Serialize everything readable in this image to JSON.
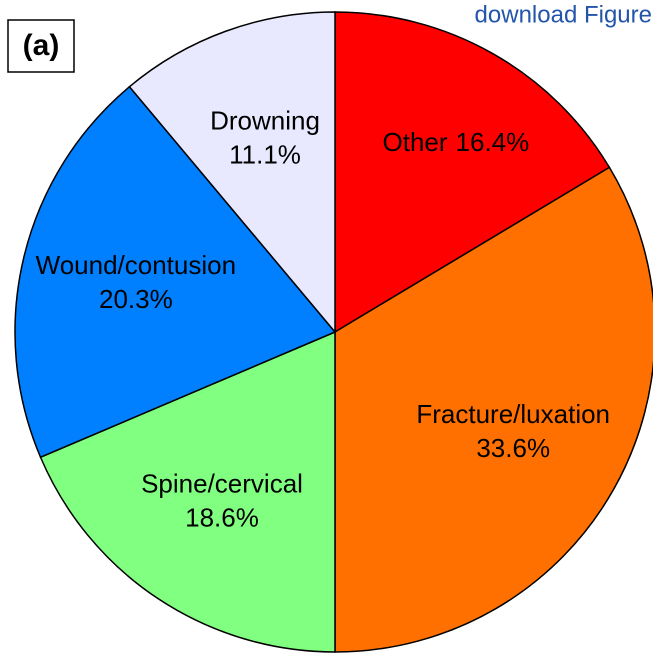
{
  "link": "download Figure",
  "chart_data": {
    "type": "pie",
    "panel_label": "(a)",
    "categories": [
      "Other",
      "Fracture/luxation",
      "Spine/cervical",
      "Wound/contusion",
      "Drowning"
    ],
    "values": [
      16.4,
      33.6,
      18.6,
      20.3,
      11.1
    ],
    "value_labels": [
      "16.4%",
      "33.6%",
      "18.6%",
      "20.3%",
      "11.1%"
    ],
    "colors": [
      "#ff0000",
      "#ff7000",
      "#80ff80",
      "#0080ff",
      "#e8e8ff"
    ],
    "start_angle": 0,
    "direction": "clockwise"
  }
}
